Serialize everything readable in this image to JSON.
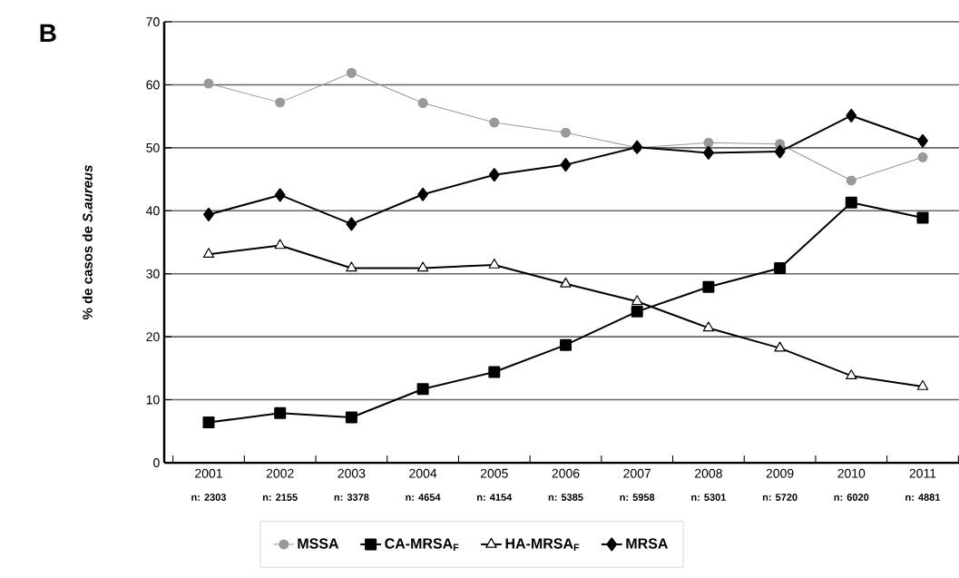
{
  "chart_data": {
    "type": "line",
    "title": "B",
    "ylabel": "% de casos de *S.aureus*",
    "categories": [
      "2001",
      "2002",
      "2003",
      "2004",
      "2005",
      "2006",
      "2007",
      "2008",
      "2009",
      "2010",
      "2011"
    ],
    "annotations": [
      "n: 2303",
      "n: 2155",
      "n: 3378",
      "n: 4654",
      "n: 4154",
      "n: 5385",
      "n: 5958",
      "n: 5301",
      "n: 5720",
      "n: 6020",
      "n: 4881"
    ],
    "series": [
      {
        "name": "MSSA",
        "color": "#999999",
        "marker": "circle",
        "values": [
          60.2,
          57.2,
          61.9,
          57.1,
          54.0,
          52.4,
          50.0,
          50.8,
          50.6,
          44.8,
          48.5
        ]
      },
      {
        "name": "CA-MRSA$_{F}$",
        "color": "#000000",
        "marker": "square",
        "values": [
          6.4,
          7.9,
          7.2,
          11.7,
          14.4,
          18.7,
          24.0,
          27.9,
          30.9,
          41.3,
          38.9
        ]
      },
      {
        "name": "HA-MRSA$_{F}$",
        "color": "#000000",
        "marker": "triangle",
        "values": [
          33.1,
          34.5,
          30.9,
          30.9,
          31.4,
          28.4,
          25.6,
          21.4,
          18.2,
          13.8,
          12.1
        ]
      },
      {
        "name": "MRSA",
        "color": "#000000",
        "marker": "diamond",
        "values": [
          39.4,
          42.5,
          37.9,
          42.6,
          45.7,
          47.3,
          50.1,
          49.2,
          49.4,
          55.1,
          51.1
        ]
      }
    ],
    "ylim": [
      0,
      70
    ],
    "yticks": [
      0,
      10,
      20,
      30,
      40,
      50,
      60,
      70
    ],
    "grid": "y",
    "legend": "bottom"
  }
}
